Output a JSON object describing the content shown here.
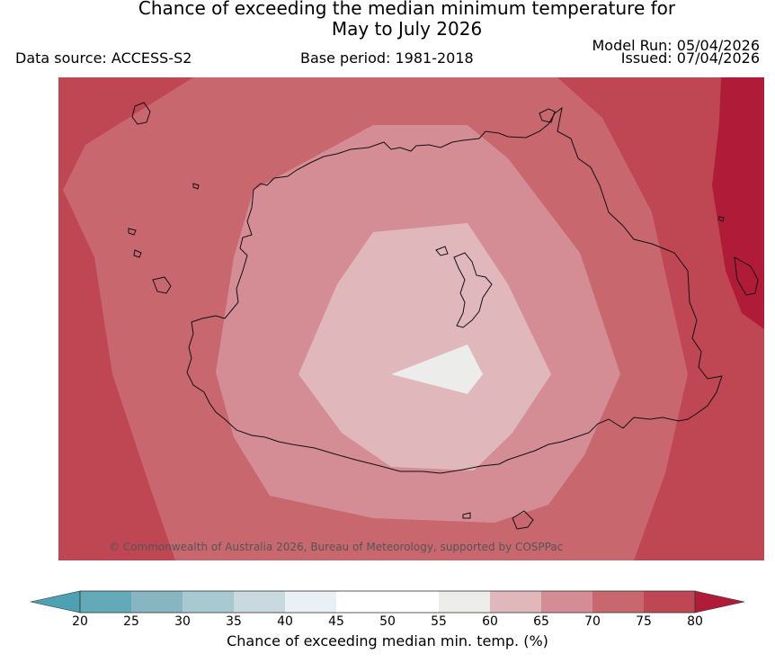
{
  "header": {
    "title_line1": "Chance of exceeding the median minimum temperature for",
    "title_line2": "May to July 2026",
    "data_source": "Data source: ACCESS-S2",
    "base_period": "Base period: 1981-2018",
    "model_run": "Model Run: 05/04/2026",
    "issued": "Issued: 07/04/2026"
  },
  "map": {
    "copyright": "© Commonwealth of Australia 2026, Bureau of Meteorology, supported by COSPPac",
    "bands": [
      {
        "level": "75-80",
        "color": "#bf4653"
      },
      {
        "level": "70-75",
        "color": "#c9676f"
      },
      {
        "level": "65-70",
        "color": "#d48d94"
      },
      {
        "level": "60-65",
        "color": "#e0b8bc"
      },
      {
        "level": "55-60",
        "color": "#ececeb"
      },
      {
        "level": ">80",
        "color": "#b01c38"
      }
    ]
  },
  "colorbar": {
    "label": "Chance of exceeding median min. temp. (%)",
    "ticks": [
      "20",
      "25",
      "30",
      "35",
      "40",
      "45",
      "50",
      "55",
      "60",
      "65",
      "70",
      "75",
      "80"
    ],
    "colors": [
      "#63a9b8",
      "#86b6c2",
      "#a8c9cf",
      "#c8dadf",
      "#eaf1f4",
      "#ffffff",
      "#ffffff",
      "#ededeb",
      "#e0b8bc",
      "#d48d94",
      "#c9676f",
      "#bf4653"
    ],
    "under_color": "#4ea1b2",
    "over_color": "#b01c38"
  }
}
